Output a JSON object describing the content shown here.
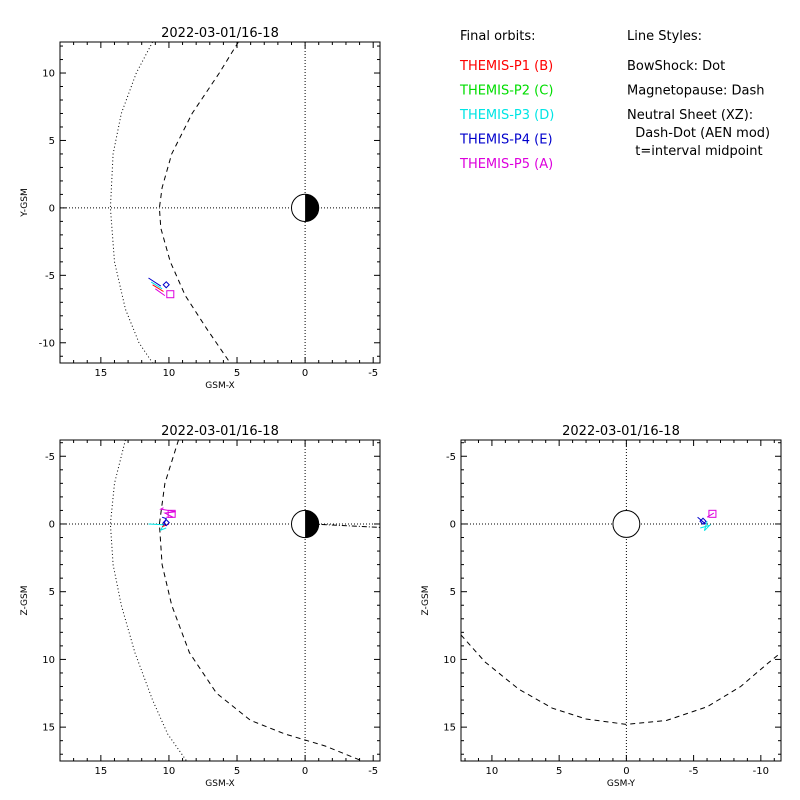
{
  "legend": {
    "orbits_title": "Final orbits:",
    "probes": [
      {
        "label": "THEMIS-P1 (B)",
        "color": "#ff0000"
      },
      {
        "label": "THEMIS-P2 (C)",
        "color": "#00dd00"
      },
      {
        "label": "THEMIS-P3 (D)",
        "color": "#00e5e5"
      },
      {
        "label": "THEMIS-P4 (E)",
        "color": "#0000cc"
      },
      {
        "label": "THEMIS-P5 (A)",
        "color": "#dd00dd"
      }
    ],
    "styles_title": "Line Styles:",
    "styles": [
      "BowShock: Dot",
      "Magnetopause: Dash",
      "Neutral Sheet (XZ):",
      "  Dash-Dot (AEN mod)",
      "  t=interval midpoint"
    ]
  },
  "chart_data": [
    {
      "type": "line",
      "title": "2022-03-01/16-18",
      "xlabel": "GSM-X",
      "ylabel": "Y-GSM",
      "xlim": [
        18,
        -5.5
      ],
      "ylim": [
        12.3,
        -11.5
      ],
      "xticks": [
        15,
        10,
        5,
        0,
        -5
      ],
      "yticks": [
        -10,
        -5,
        0,
        5,
        10
      ],
      "bowshock": [
        [
          11.2,
          12.3
        ],
        [
          12.4,
          10
        ],
        [
          13.5,
          7
        ],
        [
          14.1,
          4
        ],
        [
          14.3,
          0
        ],
        [
          14.0,
          -4
        ],
        [
          13.2,
          -7.5
        ],
        [
          12.2,
          -10
        ],
        [
          11.2,
          -11.5
        ]
      ],
      "magnetopause": [
        [
          4.9,
          12.3
        ],
        [
          6.3,
          10
        ],
        [
          8.3,
          7
        ],
        [
          9.8,
          4
        ],
        [
          10.5,
          1.5
        ],
        [
          10.7,
          0
        ],
        [
          10.6,
          -1.5
        ],
        [
          9.9,
          -4
        ],
        [
          8.8,
          -6.5
        ],
        [
          7.2,
          -9
        ],
        [
          5.5,
          -11.5
        ]
      ],
      "orbits": [
        {
          "probe": "THEMIS-P5 (A)",
          "points": [
            [
              11.0,
              -6.0
            ],
            [
              10.3,
              -6.5
            ]
          ]
        },
        {
          "probe": "THEMIS-P4 (E)",
          "points": [
            [
              11.5,
              -5.2
            ],
            [
              10.6,
              -5.8
            ]
          ]
        },
        {
          "probe": "THEMIS-P3 (D)",
          "points": [
            [
              11.3,
              -5.5
            ],
            [
              10.5,
              -6.0
            ]
          ]
        },
        {
          "probe": "THEMIS-P1 (B)",
          "points": [
            [
              11.2,
              -5.7
            ],
            [
              10.4,
              -6.2
            ]
          ]
        }
      ],
      "markers": [
        {
          "probe": "THEMIS-P5 (A)",
          "shape": "square",
          "x": 9.9,
          "y": -6.4
        },
        {
          "probe": "THEMIS-P4 (E)",
          "shape": "diamond",
          "x": 10.2,
          "y": -5.7
        }
      ],
      "earth": {
        "x": 0,
        "y": 0
      }
    },
    {
      "type": "line",
      "title": "2022-03-01/16-18",
      "xlabel": "GSM-X",
      "ylabel": "Z-GSM",
      "xlim": [
        18,
        -5.5
      ],
      "ylim": [
        -6.2,
        17.5
      ],
      "xticks": [
        15,
        10,
        5,
        0,
        -5
      ],
      "yticks": [
        -5,
        0,
        5,
        10,
        15
      ],
      "bowshock": [
        [
          13.2,
          -6.2
        ],
        [
          14.0,
          -3
        ],
        [
          14.3,
          0
        ],
        [
          14.1,
          3
        ],
        [
          13.5,
          6
        ],
        [
          12.5,
          9.5
        ],
        [
          11.2,
          13
        ],
        [
          10.1,
          15.5
        ],
        [
          8.7,
          17.5
        ]
      ],
      "magnetopause": [
        [
          9.3,
          -6.2
        ],
        [
          10.3,
          -3
        ],
        [
          10.7,
          0
        ],
        [
          10.5,
          3
        ],
        [
          9.8,
          6
        ],
        [
          8.5,
          9.5
        ],
        [
          6.5,
          12.5
        ],
        [
          4.0,
          14.5
        ],
        [
          1.5,
          15.5
        ],
        [
          -1.5,
          16.4
        ],
        [
          -4.2,
          17.5
        ]
      ],
      "neutral_sheet": [
        [
          -0.5,
          0.0
        ],
        [
          -5.5,
          0.25
        ]
      ],
      "orbits": [
        {
          "probe": "THEMIS-P5 (A)",
          "points": [
            [
              10.2,
              -0.5
            ],
            [
              9.7,
              -0.5
            ],
            [
              10.3,
              -0.8
            ],
            [
              9.5,
              -0.9
            ],
            [
              10.6,
              -1.1
            ],
            [
              10.4,
              -1.2
            ]
          ]
        },
        {
          "probe": "THEMIS-P3 (D)",
          "points": [
            [
              11.5,
              0.0
            ],
            [
              10.4,
              0.05
            ],
            [
              10.6,
              0.45
            ],
            [
              10.2,
              0.3
            ]
          ]
        },
        {
          "probe": "THEMIS-P4 (E)",
          "points": [
            [
              10.4,
              0.1
            ],
            [
              10.2,
              -0.4
            ],
            [
              10.5,
              -0.5
            ]
          ]
        },
        {
          "probe": "THEMIS-P1 (B)",
          "points": [
            [
              10.5,
              0.2
            ],
            [
              10.0,
              0.0
            ]
          ]
        }
      ],
      "markers": [
        {
          "probe": "THEMIS-P5 (A)",
          "shape": "square",
          "x": 9.8,
          "y": -0.75
        },
        {
          "probe": "THEMIS-P4 (E)",
          "shape": "diamond",
          "x": 10.2,
          "y": -0.1
        }
      ],
      "earth": {
        "x": 0,
        "y": 0
      }
    },
    {
      "type": "line",
      "title": "2022-03-01/16-18",
      "xlabel": "GSM-Y",
      "ylabel": "Z-GSM",
      "xlim": [
        12.3,
        -11.5
      ],
      "ylim": [
        -6.2,
        17.5
      ],
      "xticks": [
        10,
        5,
        0,
        -5,
        -10
      ],
      "yticks": [
        -5,
        0,
        5,
        10,
        15
      ],
      "magnetopause": [
        [
          12.3,
          8.2
        ],
        [
          10.5,
          10.2
        ],
        [
          8.0,
          12.2
        ],
        [
          5.5,
          13.6
        ],
        [
          3.0,
          14.4
        ],
        [
          0.0,
          14.8
        ],
        [
          -3.0,
          14.5
        ],
        [
          -6.0,
          13.5
        ],
        [
          -8.5,
          12.0
        ],
        [
          -10.5,
          10.3
        ],
        [
          -11.5,
          9.5
        ]
      ],
      "orbits": [
        {
          "probe": "THEMIS-P3 (D)",
          "points": [
            [
              -5.5,
              0.3
            ],
            [
              -6.2,
              0.1
            ],
            [
              -5.8,
              0.5
            ],
            [
              -6.0,
              -0.2
            ]
          ]
        },
        {
          "probe": "THEMIS-P4 (E)",
          "points": [
            [
              -5.3,
              -0.5
            ],
            [
              -5.9,
              0.0
            ],
            [
              -5.5,
              -0.3
            ]
          ]
        },
        {
          "probe": "THEMIS-P5 (A)",
          "points": [
            [
              -6.0,
              -0.5
            ],
            [
              -6.5,
              -0.8
            ]
          ]
        }
      ],
      "markers": [
        {
          "probe": "THEMIS-P5 (A)",
          "shape": "square",
          "x": -6.4,
          "y": -0.75
        },
        {
          "probe": "THEMIS-P4 (E)",
          "shape": "diamond",
          "x": -5.7,
          "y": -0.2
        }
      ],
      "earth": {
        "x": 0,
        "y": 0,
        "open": true
      }
    }
  ]
}
